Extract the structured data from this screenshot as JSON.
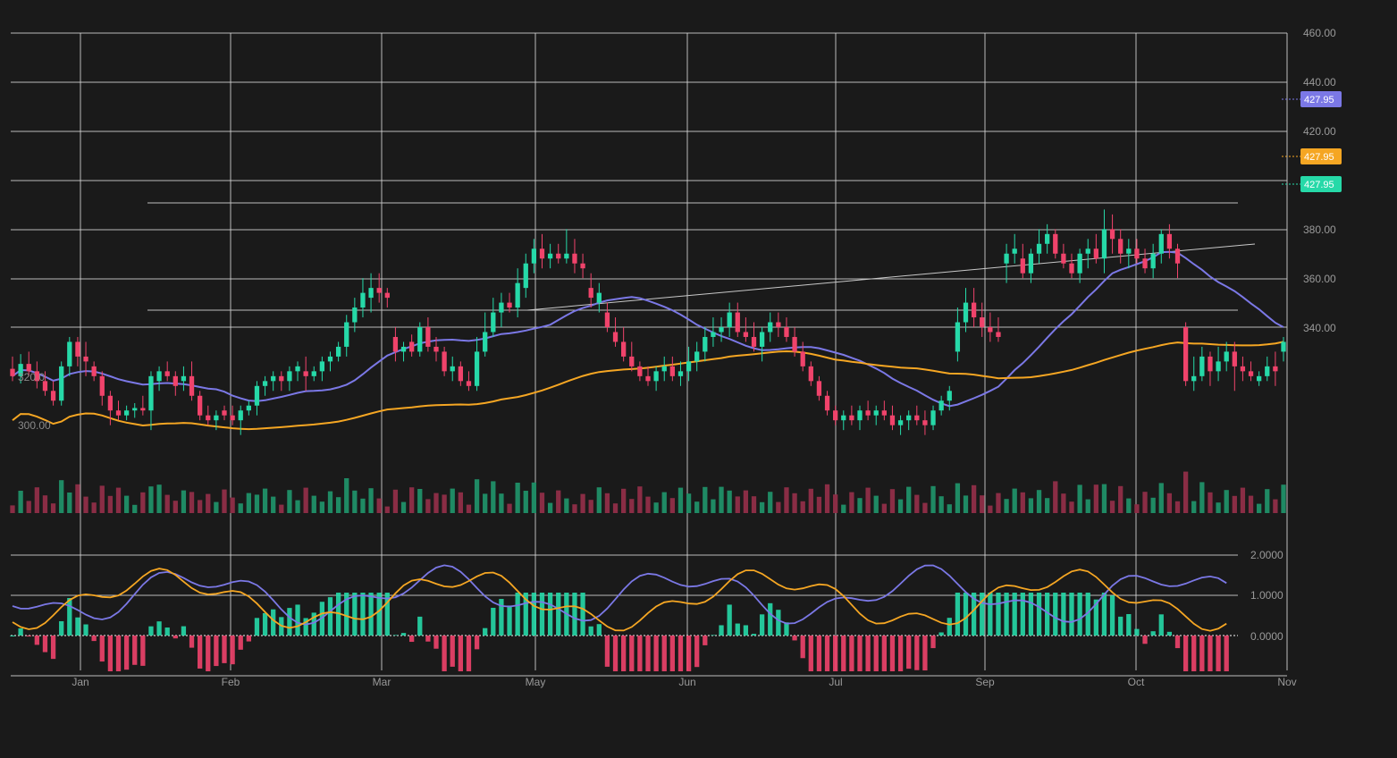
{
  "chart_data": {
    "type": "candlestick",
    "x_months": [
      "Jan",
      "Feb",
      "Mar",
      "May",
      "Jun",
      "Jul",
      "Sep",
      "Oct",
      "Nov"
    ],
    "y_ticks": [
      "460.00",
      "440.00",
      "420.00",
      "380.00",
      "360.00",
      "340.00"
    ],
    "inside_labels": [
      "320.0",
      "300.00"
    ],
    "indicator_ticks": [
      "2.0000",
      "1.0000",
      "0.0000"
    ],
    "price_tags": [
      {
        "label": "427.95",
        "color": "#7b78e6"
      },
      {
        "label": "427.95",
        "color": "#f5a623"
      },
      {
        "label": "427.95",
        "color": "#26d9a8"
      }
    ],
    "colors": {
      "up": "#26d9a8",
      "down": "#f0436b",
      "ma_fast": "#7b78e6",
      "ma_slow": "#f5a623",
      "vol_up": "#1f8a64",
      "vol_down": "#8a2d45",
      "grid": "#d8d8d8",
      "background": "#1a1a1a"
    },
    "grid": true,
    "candles": [
      [
        323,
        328,
        318,
        320
      ],
      [
        320,
        329,
        317,
        325
      ],
      [
        325,
        330,
        320,
        322
      ],
      [
        322,
        326,
        315,
        318
      ],
      [
        318,
        322,
        312,
        314
      ],
      [
        314,
        318,
        308,
        310
      ],
      [
        310,
        326,
        308,
        324
      ],
      [
        324,
        336,
        320,
        334
      ],
      [
        334,
        336,
        324,
        328
      ],
      [
        328,
        334,
        320,
        326
      ],
      [
        324,
        326,
        318,
        320
      ],
      [
        320,
        322,
        308,
        312
      ],
      [
        312,
        314,
        300,
        306
      ],
      [
        306,
        310,
        302,
        304
      ],
      [
        304,
        308,
        302,
        306
      ],
      [
        306,
        309,
        303,
        307
      ],
      [
        307,
        312,
        304,
        306
      ],
      [
        306,
        322,
        298,
        320
      ],
      [
        318,
        324,
        314,
        322
      ],
      [
        322,
        326,
        318,
        320
      ],
      [
        320,
        322,
        312,
        316
      ],
      [
        318,
        324,
        314,
        320
      ],
      [
        320,
        326,
        310,
        312
      ],
      [
        312,
        314,
        302,
        304
      ],
      [
        304,
        308,
        300,
        302
      ],
      [
        302,
        306,
        298,
        304
      ],
      [
        306,
        308,
        302,
        304
      ],
      [
        304,
        308,
        300,
        302
      ],
      [
        302,
        308,
        296,
        306
      ],
      [
        306,
        310,
        304,
        308
      ],
      [
        308,
        318,
        304,
        316
      ],
      [
        316,
        320,
        312,
        318
      ],
      [
        318,
        322,
        314,
        320
      ],
      [
        320,
        322,
        314,
        318
      ],
      [
        318,
        324,
        314,
        322
      ],
      [
        322,
        326,
        318,
        324
      ],
      [
        322,
        328,
        314,
        320
      ],
      [
        320,
        324,
        318,
        322
      ],
      [
        322,
        328,
        318,
        326
      ],
      [
        326,
        330,
        322,
        328
      ],
      [
        328,
        334,
        326,
        332
      ],
      [
        332,
        345,
        328,
        342
      ],
      [
        342,
        352,
        338,
        348
      ],
      [
        348,
        360,
        344,
        354
      ],
      [
        352,
        362,
        346,
        356
      ],
      [
        356,
        362,
        350,
        354
      ],
      [
        354,
        356,
        348,
        352
      ],
      [
        336,
        340,
        326,
        330
      ],
      [
        330,
        334,
        326,
        332
      ],
      [
        334,
        337,
        328,
        330
      ],
      [
        330,
        342,
        328,
        340
      ],
      [
        340,
        344,
        330,
        332
      ],
      [
        332,
        336,
        326,
        330
      ],
      [
        330,
        332,
        320,
        322
      ],
      [
        322,
        328,
        318,
        324
      ],
      [
        324,
        326,
        316,
        318
      ],
      [
        318,
        322,
        314,
        316
      ],
      [
        316,
        336,
        314,
        330
      ],
      [
        330,
        346,
        328,
        338
      ],
      [
        338,
        352,
        336,
        346
      ],
      [
        346,
        354,
        340,
        350
      ],
      [
        350,
        354,
        346,
        348
      ],
      [
        348,
        364,
        344,
        358
      ],
      [
        356,
        370,
        352,
        366
      ],
      [
        366,
        376,
        362,
        372
      ],
      [
        372,
        378,
        364,
        368
      ],
      [
        368,
        374,
        364,
        370
      ],
      [
        370,
        374,
        366,
        368
      ],
      [
        368,
        380,
        366,
        370
      ],
      [
        370,
        376,
        362,
        366
      ],
      [
        366,
        370,
        360,
        364
      ],
      [
        356,
        362,
        348,
        352
      ],
      [
        350,
        358,
        346,
        354
      ],
      [
        346,
        350,
        338,
        340
      ],
      [
        338,
        344,
        332,
        334
      ],
      [
        334,
        340,
        326,
        328
      ],
      [
        328,
        334,
        322,
        324
      ],
      [
        324,
        326,
        318,
        320
      ],
      [
        320,
        324,
        316,
        318
      ],
      [
        318,
        324,
        314,
        322
      ],
      [
        322,
        328,
        318,
        324
      ],
      [
        324,
        328,
        318,
        320
      ],
      [
        320,
        326,
        316,
        322
      ],
      [
        322,
        332,
        318,
        326
      ],
      [
        326,
        334,
        322,
        330
      ],
      [
        330,
        340,
        326,
        336
      ],
      [
        336,
        344,
        332,
        338
      ],
      [
        338,
        344,
        334,
        340
      ],
      [
        340,
        350,
        336,
        346
      ],
      [
        346,
        350,
        336,
        338
      ],
      [
        338,
        344,
        334,
        336
      ],
      [
        336,
        342,
        330,
        332
      ],
      [
        332,
        340,
        326,
        338
      ],
      [
        338,
        346,
        334,
        342
      ],
      [
        342,
        346,
        336,
        340
      ],
      [
        340,
        344,
        334,
        336
      ],
      [
        336,
        340,
        328,
        330
      ],
      [
        330,
        334,
        322,
        324
      ],
      [
        324,
        326,
        316,
        318
      ],
      [
        318,
        320,
        310,
        312
      ],
      [
        312,
        314,
        304,
        306
      ],
      [
        306,
        308,
        300,
        302
      ],
      [
        302,
        306,
        298,
        304
      ],
      [
        304,
        308,
        300,
        302
      ],
      [
        302,
        308,
        298,
        306
      ],
      [
        306,
        310,
        302,
        304
      ],
      [
        304,
        308,
        300,
        306
      ],
      [
        306,
        310,
        302,
        304
      ],
      [
        304,
        308,
        298,
        300
      ],
      [
        300,
        304,
        296,
        302
      ],
      [
        302,
        306,
        298,
        304
      ],
      [
        304,
        308,
        300,
        302
      ],
      [
        302,
        306,
        296,
        300
      ],
      [
        300,
        308,
        298,
        306
      ],
      [
        306,
        312,
        304,
        310
      ],
      [
        310,
        316,
        306,
        314
      ],
      [
        330,
        348,
        326,
        342
      ],
      [
        342,
        356,
        338,
        350
      ],
      [
        350,
        356,
        340,
        344
      ],
      [
        344,
        350,
        336,
        340
      ],
      [
        340,
        346,
        334,
        338
      ],
      [
        338,
        344,
        334,
        336
      ],
      [
        366,
        374,
        358,
        370
      ],
      [
        370,
        378,
        366,
        372
      ],
      [
        368,
        374,
        360,
        362
      ],
      [
        362,
        372,
        358,
        370
      ],
      [
        370,
        380,
        366,
        374
      ],
      [
        374,
        382,
        370,
        378
      ],
      [
        378,
        380,
        368,
        370
      ],
      [
        370,
        374,
        364,
        366
      ],
      [
        366,
        370,
        360,
        362
      ],
      [
        362,
        372,
        358,
        370
      ],
      [
        370,
        376,
        364,
        372
      ],
      [
        372,
        378,
        366,
        368
      ],
      [
        368,
        388,
        362,
        380
      ],
      [
        380,
        386,
        370,
        376
      ],
      [
        376,
        380,
        366,
        370
      ],
      [
        370,
        376,
        364,
        372
      ],
      [
        372,
        376,
        366,
        368
      ],
      [
        368,
        372,
        362,
        364
      ],
      [
        364,
        374,
        360,
        370
      ],
      [
        370,
        380,
        366,
        378
      ],
      [
        378,
        382,
        368,
        372
      ],
      [
        372,
        374,
        360,
        366
      ],
      [
        340,
        342,
        316,
        318
      ],
      [
        318,
        328,
        314,
        320
      ],
      [
        320,
        332,
        318,
        328
      ],
      [
        328,
        330,
        316,
        322
      ],
      [
        322,
        332,
        318,
        326
      ],
      [
        326,
        334,
        322,
        330
      ],
      [
        330,
        334,
        314,
        324
      ],
      [
        324,
        328,
        318,
        322
      ],
      [
        322,
        326,
        318,
        320
      ],
      [
        318,
        322,
        316,
        320
      ],
      [
        320,
        328,
        318,
        324
      ],
      [
        324,
        330,
        316,
        322
      ],
      [
        330,
        336,
        326,
        334
      ]
    ]
  }
}
